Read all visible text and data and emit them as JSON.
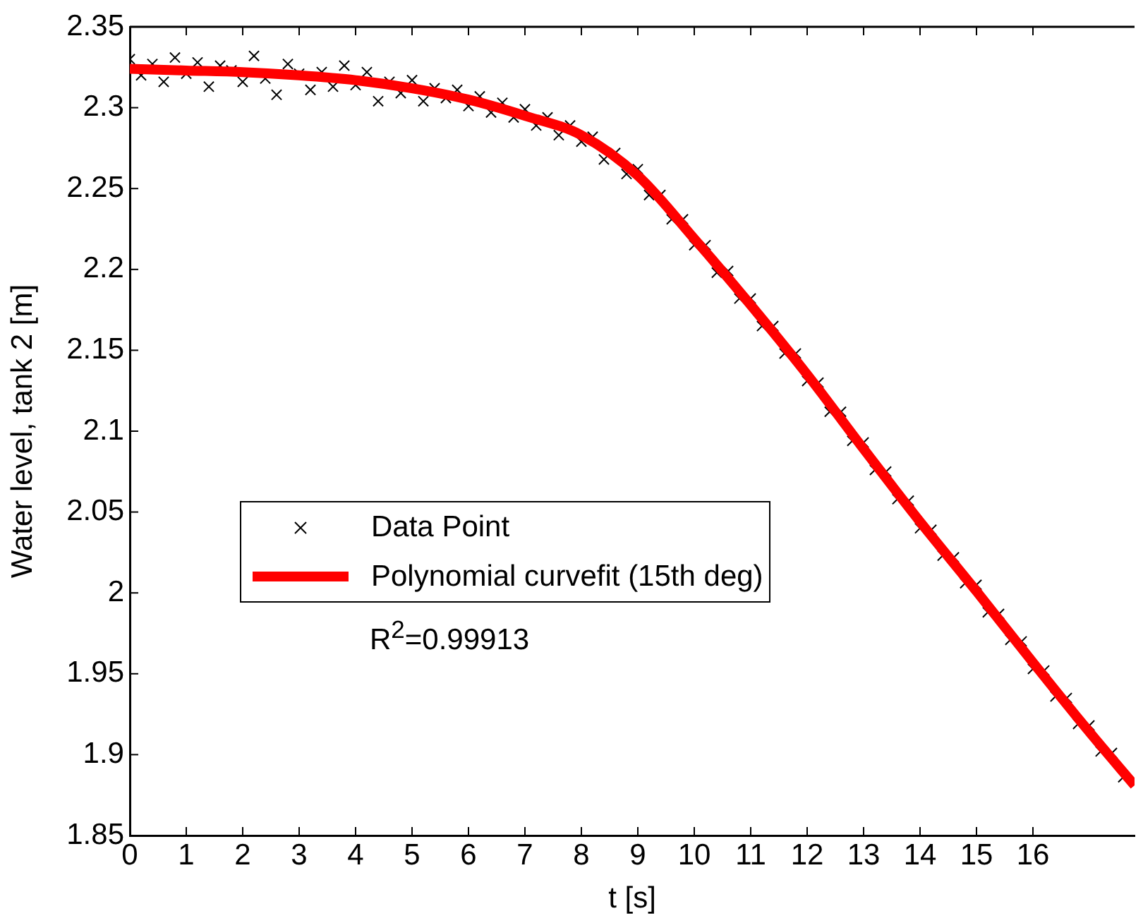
{
  "chart_data": {
    "type": "scatter",
    "xlabel": "t [s]",
    "ylabel": "Water level, tank 2 [m]",
    "xlim": [
      0,
      17.8
    ],
    "xticks": [
      0,
      1,
      2,
      3,
      4,
      5,
      6,
      7,
      8,
      9,
      10,
      11,
      12,
      13,
      14,
      15,
      16
    ],
    "ylim": [
      1.85,
      2.35
    ],
    "yticks": [
      1.85,
      1.9,
      1.95,
      2,
      2.05,
      2.1,
      2.15,
      2.2,
      2.25,
      2.3,
      2.35
    ],
    "grid": false,
    "legend": "center left",
    "annotations": [
      "R$^{2}$=0.99913"
    ],
    "series": [
      {
        "name": "Data Point",
        "type": "scatter",
        "marker": "cross",
        "color": "#000000",
        "x": [
          0,
          0.2,
          0.4,
          0.6,
          0.8,
          1,
          1.2,
          1.4,
          1.6,
          1.8,
          2,
          2.2,
          2.4,
          2.6,
          2.8,
          3,
          3.2,
          3.4,
          3.6,
          3.8,
          4,
          4.2,
          4.4,
          4.6,
          4.8,
          5,
          5.2,
          5.4,
          5.6,
          5.8,
          6,
          6.2,
          6.4,
          6.6,
          6.8,
          7,
          7.2,
          7.4,
          7.6,
          7.8,
          8,
          8.2,
          8.4,
          8.6,
          8.8,
          9,
          9.2,
          9.4,
          9.6,
          9.8,
          10,
          10.2,
          10.4,
          10.6,
          10.8,
          11,
          11.2,
          11.4,
          11.6,
          11.8,
          12,
          12.2,
          12.4,
          12.6,
          12.8,
          13,
          13.2,
          13.4,
          13.6,
          13.8,
          14,
          14.2,
          14.4,
          14.6,
          14.8,
          15,
          15.2,
          15.4,
          15.6,
          15.8,
          16,
          16.2,
          16.4,
          16.6,
          16.8,
          17,
          17.2,
          17.4,
          17.6
        ],
        "values": [
          2.33,
          2.32,
          2.327,
          2.316,
          2.331,
          2.321,
          2.328,
          2.313,
          2.326,
          2.323,
          2.316,
          2.332,
          2.318,
          2.308,
          2.327,
          2.321,
          2.311,
          2.322,
          2.313,
          2.326,
          2.314,
          2.322,
          2.304,
          2.316,
          2.309,
          2.317,
          2.304,
          2.312,
          2.306,
          2.311,
          2.301,
          2.307,
          2.297,
          2.303,
          2.294,
          2.299,
          2.289,
          2.294,
          2.283,
          2.289,
          2.279,
          2.282,
          2.268,
          2.272,
          2.259,
          2.262,
          2.246,
          2.246,
          2.231,
          2.231,
          2.215,
          2.215,
          2.198,
          2.199,
          2.182,
          2.182,
          2.165,
          2.165,
          2.148,
          2.148,
          2.131,
          2.13,
          2.112,
          2.112,
          2.094,
          2.093,
          2.076,
          2.075,
          2.058,
          2.057,
          2.04,
          2.039,
          2.023,
          2.022,
          2.006,
          2.005,
          1.988,
          1.987,
          1.971,
          1.97,
          1.953,
          1.952,
          1.936,
          1.935,
          1.919,
          1.918,
          1.902,
          1.901,
          1.886
        ]
      },
      {
        "name": "Polynomial curvefit (15th deg)",
        "type": "line",
        "marker": "none",
        "line_style": "solid",
        "color": "#ff0000",
        "x": [
          0,
          1,
          2,
          3,
          4,
          5,
          6,
          7,
          8,
          9,
          10,
          11,
          12,
          13,
          14,
          15,
          16,
          17,
          17.8
        ],
        "values": [
          2.324,
          2.323,
          2.322,
          2.32,
          2.317,
          2.312,
          2.305,
          2.295,
          2.283,
          2.258,
          2.219,
          2.178,
          2.135,
          2.089,
          2.044,
          2.001,
          1.957,
          1.914,
          1.881
        ]
      }
    ]
  }
}
